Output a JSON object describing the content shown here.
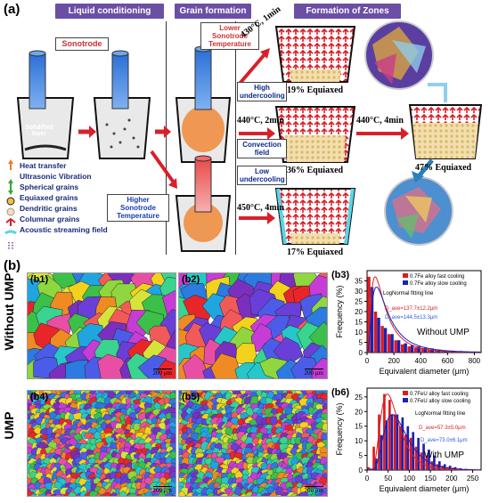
{
  "panel_a": {
    "label": "(a)",
    "headers": {
      "liquid": "Liquid conditioning",
      "grain": "Grain formation",
      "zones": "Formation of Zones"
    },
    "sonotrode": "Sonotrode",
    "solidified_layer": "Solidified\nlayer",
    "lower_temp": "Lower\nSonotrode\nTemperature",
    "higher_temp": "Higher\nSonotrode\nTemperature",
    "high_undercooling": "High\nundercooling",
    "low_undercooling": "Low\nundercooling",
    "convection": "Convection\nfield",
    "cond1": "430°C, 1min",
    "cond2": "440°C, 2min",
    "cond3": "450°C, 4min",
    "cond4": "440°C, 4min",
    "eq1": "19% Equiaxed",
    "eq2": "36% Equiaxed",
    "eq3": "17% Equiaxed",
    "eq4": "47% Equiaxed",
    "legend": [
      "Heat transfer",
      "Ultrasonic Vibration",
      "Spherical grains",
      "Equiaxed grains",
      "Dendritic grains",
      "Columnar grains",
      "Acoustic streaming field"
    ]
  },
  "panel_b": {
    "label": "(b)",
    "row1": "Without UMP",
    "row2": "UMP",
    "maps": [
      {
        "id": "(b1)",
        "scale": "200 μm"
      },
      {
        "id": "(b2)",
        "scale": "200 μm"
      },
      {
        "id": "(b4)",
        "scale": "200 μm"
      },
      {
        "id": "(b5)",
        "scale": "200 μm"
      }
    ]
  },
  "colors": {
    "fast": "#e0191c",
    "slow": "#1a22b4",
    "header": "#6b4fa5"
  },
  "chart_data": [
    {
      "type": "bar",
      "panel": "(b3)",
      "xlabel": "Equivalent diameter (μm)",
      "ylabel": "Frequency (%)",
      "xlim": [
        0,
        850
      ],
      "ylim": [
        0,
        40
      ],
      "xticks": [
        0,
        200,
        400,
        600,
        800
      ],
      "yticks": [
        0,
        5,
        10,
        15,
        20,
        25,
        30,
        35
      ],
      "fit_label": "LogNormal fitting line",
      "annotation": "Without UMP",
      "d_fast": "D_ave=137.7±12.2μm",
      "d_slow": "D_ave=144.5±13.3μm",
      "bin_width": 50,
      "x": [
        25,
        75,
        125,
        175,
        225,
        275,
        325,
        375,
        425,
        475,
        525,
        575,
        625,
        675,
        725,
        775,
        825
      ],
      "series": [
        {
          "name": "0.7Fe alloy fast cooling",
          "values": [
            37,
            20,
            13,
            9,
            6,
            4,
            3,
            2.5,
            2,
            1.5,
            1.2,
            0.8,
            0.6,
            0.5,
            0.4,
            0.3,
            0.2
          ]
        },
        {
          "name": "0.7Fe alloy slow cooling",
          "values": [
            32,
            17,
            12,
            9,
            6,
            4.5,
            3.5,
            3,
            2.5,
            2,
            1.5,
            1,
            0.8,
            0.6,
            0.5,
            0.3,
            0.2
          ]
        }
      ]
    },
    {
      "type": "bar",
      "panel": "(b6)",
      "xlabel": "Equivalent diameter (μm)",
      "ylabel": "Frequency (%)",
      "xlim": [
        0,
        270
      ],
      "ylim": [
        0,
        28
      ],
      "xticks": [
        0,
        50,
        100,
        150,
        200,
        250
      ],
      "yticks": [
        0,
        5,
        10,
        15,
        20,
        25
      ],
      "fit_label": "LogNormal fitting line",
      "annotation": "With UMP",
      "d_fast": "D_ave=57.3±5.0μm",
      "d_slow": "D_ave=73.0±6.1μm",
      "bin_width": 12.5,
      "x": [
        6.25,
        18.75,
        31.25,
        43.75,
        56.25,
        68.75,
        81.25,
        93.75,
        106.25,
        118.75,
        131.25,
        143.75,
        156.25,
        168.75,
        181.25,
        193.75,
        206.25,
        218.75,
        231.25,
        243.75
      ],
      "series": [
        {
          "name": "0.7FeU alloy fast cooling",
          "values": [
            1,
            8,
            19,
            26,
            24,
            19,
            15,
            12,
            11,
            8,
            6,
            5,
            3,
            2,
            1.5,
            1,
            0.8,
            0.5,
            0.3,
            0.2
          ]
        },
        {
          "name": "0.7FeU alloy slow cooling",
          "values": [
            0.5,
            4,
            12,
            17,
            19,
            19,
            18,
            15,
            13,
            11,
            9,
            7,
            5,
            3,
            2,
            1.5,
            1,
            0.6,
            0.4,
            0.2
          ]
        }
      ]
    }
  ]
}
